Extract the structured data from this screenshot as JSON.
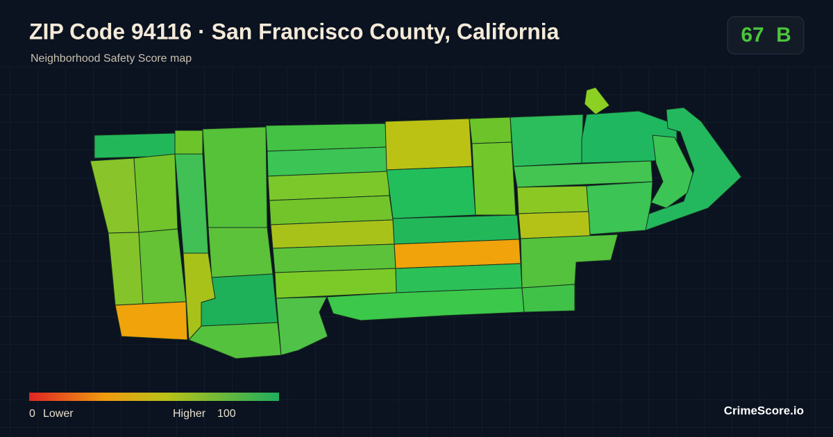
{
  "header": {
    "title": "ZIP Code 94116 · San Francisco County, California",
    "subtitle": "Neighborhood Safety Score map"
  },
  "badge": {
    "score": 67,
    "grade": "B"
  },
  "legend": {
    "min": 0,
    "min_label": "Lower",
    "max_label": "Higher",
    "max": 100
  },
  "brand": "CrimeScore.io"
}
